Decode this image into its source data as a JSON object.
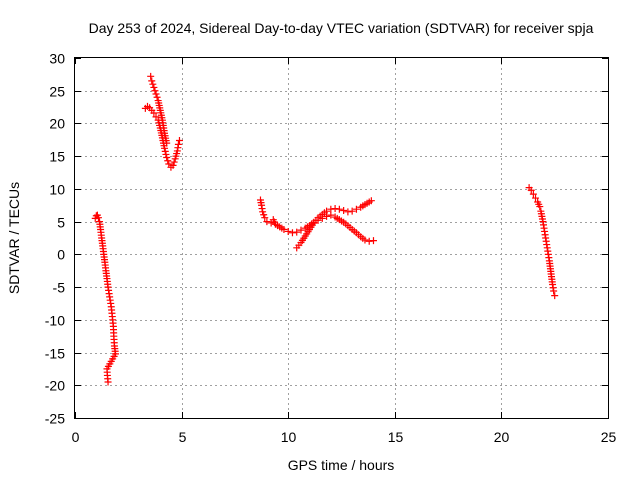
{
  "chart_data": {
    "type": "scatter",
    "title": "Day 253 of 2024, Sidereal Day-to-day VTEC variation (SDTVAR) for receiver spja",
    "xlabel": "GPS time / hours",
    "ylabel": "SDTVAR / TECUs",
    "xlim": [
      0,
      25
    ],
    "ylim": [
      -25,
      30
    ],
    "x_ticks": [
      "0",
      "5",
      "10",
      "15",
      "20",
      "25"
    ],
    "y_ticks": [
      "-25",
      "-20",
      "-15",
      "-10",
      "-5",
      "0",
      "5",
      "10",
      "15",
      "20",
      "25",
      "30"
    ],
    "grid": true,
    "marker": "plus",
    "color": "#ff0000",
    "series": [
      {
        "points": [
          [
            0.95,
            5.5
          ],
          [
            1.0,
            5.9
          ],
          [
            1.05,
            6.0
          ],
          [
            1.1,
            5.6
          ],
          [
            1.15,
            5.0
          ],
          [
            1.2,
            3.8
          ],
          [
            1.25,
            2.5
          ],
          [
            1.3,
            1.3
          ],
          [
            1.35,
            0.0
          ],
          [
            1.4,
            -1.2
          ],
          [
            1.45,
            -2.5
          ],
          [
            1.5,
            -3.7
          ],
          [
            1.55,
            -5.0
          ],
          [
            1.6,
            -6.0
          ],
          [
            1.65,
            -7.0
          ],
          [
            1.7,
            -8.0
          ],
          [
            1.75,
            -9.5
          ],
          [
            1.8,
            -11.0
          ],
          [
            1.82,
            -12.5
          ],
          [
            1.85,
            -14.0
          ],
          [
            1.9,
            -15.2
          ],
          [
            1.5,
            -17.5
          ],
          [
            1.52,
            -18.5
          ],
          [
            1.55,
            -19.5
          ]
        ]
      },
      {
        "points": [
          [
            3.3,
            22.3
          ],
          [
            3.4,
            22.6
          ],
          [
            3.5,
            22.4
          ],
          [
            3.6,
            22.0
          ],
          [
            3.7,
            21.6
          ],
          [
            3.8,
            21.0
          ],
          [
            3.9,
            20.5
          ],
          [
            4.0,
            19.3
          ],
          [
            4.1,
            17.8
          ],
          [
            4.2,
            16.2
          ],
          [
            4.3,
            14.8
          ],
          [
            4.4,
            13.8
          ],
          [
            4.5,
            13.3
          ],
          [
            4.6,
            13.6
          ],
          [
            4.7,
            14.6
          ],
          [
            4.8,
            15.8
          ],
          [
            4.85,
            16.8
          ],
          [
            4.9,
            17.4
          ],
          [
            3.55,
            27.2
          ],
          [
            3.6,
            26.5
          ],
          [
            3.7,
            25.5
          ],
          [
            3.8,
            24.5
          ],
          [
            3.9,
            23.5
          ],
          [
            4.0,
            22.0
          ],
          [
            4.1,
            20.5
          ],
          [
            4.2,
            18.5
          ],
          [
            4.3,
            17.0
          ]
        ]
      },
      {
        "points": [
          [
            8.7,
            8.3
          ],
          [
            8.75,
            7.5
          ],
          [
            8.8,
            6.5
          ],
          [
            8.9,
            5.6
          ],
          [
            9.0,
            5.0
          ],
          [
            9.2,
            4.8
          ],
          [
            9.3,
            5.3
          ],
          [
            9.4,
            4.6
          ],
          [
            9.6,
            4.2
          ],
          [
            9.8,
            3.8
          ],
          [
            10.0,
            3.5
          ],
          [
            10.2,
            3.3
          ],
          [
            10.4,
            3.4
          ],
          [
            10.6,
            3.7
          ],
          [
            10.8,
            4.0
          ],
          [
            11.0,
            4.4
          ],
          [
            11.2,
            4.9
          ],
          [
            11.4,
            5.2
          ],
          [
            11.6,
            5.5
          ],
          [
            11.8,
            5.8
          ],
          [
            12.0,
            6.0
          ],
          [
            12.2,
            5.7
          ],
          [
            12.4,
            5.3
          ],
          [
            12.6,
            4.9
          ],
          [
            12.8,
            4.4
          ],
          [
            13.0,
            3.8
          ],
          [
            13.2,
            3.3
          ],
          [
            13.4,
            2.7
          ],
          [
            13.6,
            2.2
          ],
          [
            13.8,
            2.0
          ],
          [
            14.0,
            2.1
          ],
          [
            10.4,
            1.0
          ],
          [
            10.6,
            1.8
          ],
          [
            10.8,
            2.8
          ],
          [
            11.0,
            3.8
          ],
          [
            11.2,
            4.8
          ],
          [
            11.4,
            5.6
          ],
          [
            11.6,
            6.1
          ],
          [
            11.8,
            6.6
          ],
          [
            12.0,
            6.9
          ],
          [
            12.2,
            7.0
          ],
          [
            12.4,
            6.9
          ],
          [
            12.6,
            6.7
          ],
          [
            12.8,
            6.5
          ],
          [
            13.0,
            6.6
          ],
          [
            13.2,
            6.9
          ],
          [
            13.4,
            7.2
          ],
          [
            13.6,
            7.6
          ],
          [
            13.8,
            8.0
          ],
          [
            13.9,
            8.2
          ]
        ]
      },
      {
        "points": [
          [
            21.3,
            10.2
          ],
          [
            21.4,
            9.8
          ],
          [
            21.5,
            9.2
          ],
          [
            21.6,
            8.6
          ],
          [
            21.7,
            8.0
          ],
          [
            21.8,
            7.3
          ],
          [
            21.85,
            6.6
          ],
          [
            21.9,
            5.8
          ],
          [
            21.95,
            5.0
          ],
          [
            22.0,
            4.0
          ],
          [
            22.05,
            3.0
          ],
          [
            22.1,
            2.0
          ],
          [
            22.15,
            1.0
          ],
          [
            22.2,
            0.0
          ],
          [
            22.25,
            -1.0
          ],
          [
            22.3,
            -2.2
          ],
          [
            22.35,
            -3.4
          ],
          [
            22.4,
            -4.6
          ],
          [
            22.45,
            -5.6
          ],
          [
            22.5,
            -6.3
          ]
        ]
      }
    ]
  }
}
